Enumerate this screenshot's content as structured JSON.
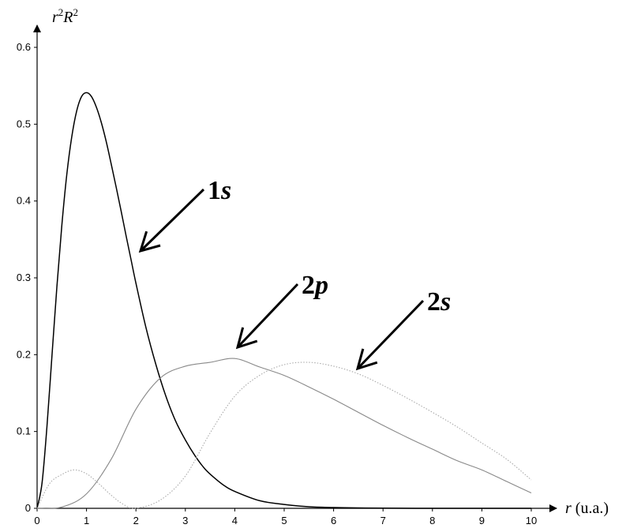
{
  "chart_data": {
    "type": "line",
    "xlabel": "r (u.a.)",
    "ylabel": "r2R2",
    "xlim": [
      0,
      10
    ],
    "ylim": [
      0,
      0.6
    ],
    "x_ticks": [
      "0",
      "1",
      "2",
      "3",
      "4",
      "5",
      "6",
      "7",
      "8",
      "9",
      "10"
    ],
    "y_ticks": [
      "0",
      "0.1",
      "0.2",
      "0.3",
      "0.4",
      "0.5",
      "0.6"
    ],
    "grid": false,
    "series": [
      {
        "name": "1s",
        "color": "#000000",
        "style": "solid",
        "x": [
          0,
          0.1,
          0.2,
          0.3,
          0.4,
          0.5,
          0.6,
          0.7,
          0.8,
          0.9,
          1.0,
          1.1,
          1.2,
          1.3,
          1.4,
          1.5,
          1.6,
          1.7,
          1.8,
          1.9,
          2.0,
          2.2,
          2.4,
          2.6,
          2.8,
          3.0,
          3.2,
          3.4,
          3.6,
          3.8,
          4.0,
          4.5,
          5.0,
          5.5,
          6.0,
          6.5,
          7.0,
          8.0,
          9.0,
          10.0
        ],
        "y": [
          0,
          0.033,
          0.107,
          0.198,
          0.288,
          0.368,
          0.434,
          0.483,
          0.517,
          0.536,
          0.541,
          0.536,
          0.522,
          0.502,
          0.477,
          0.448,
          0.418,
          0.387,
          0.355,
          0.324,
          0.293,
          0.236,
          0.188,
          0.147,
          0.114,
          0.089,
          0.068,
          0.051,
          0.039,
          0.029,
          0.022,
          0.01,
          0.005,
          0.002,
          0.001,
          0.0005,
          0.0002,
          0.0,
          0.0,
          0.0
        ]
      },
      {
        "name": "2p",
        "color": "#888888",
        "style": "solid",
        "x": [
          0,
          0.5,
          1.0,
          1.5,
          2.0,
          2.5,
          3.0,
          3.5,
          4.0,
          4.5,
          5.0,
          5.5,
          6.0,
          6.5,
          7.0,
          7.5,
          8.0,
          8.5,
          9.0,
          9.5,
          10.0
        ],
        "y": [
          0,
          0.0016,
          0.0189,
          0.064,
          0.129,
          0.17,
          0.185,
          0.19,
          0.195,
          0.184,
          0.173,
          0.158,
          0.142,
          0.125,
          0.108,
          0.092,
          0.077,
          0.062,
          0.05,
          0.035,
          0.02
        ]
      },
      {
        "name": "2s",
        "color": "#aaaaaa",
        "style": "dotted",
        "x": [
          0,
          0.25,
          0.5,
          0.75,
          1.0,
          1.25,
          1.5,
          1.75,
          2.0,
          2.5,
          3.0,
          3.5,
          4.0,
          4.5,
          5.0,
          5.5,
          6.0,
          6.5,
          7.0,
          7.5,
          8.0,
          8.5,
          9.0,
          9.5,
          10.0
        ],
        "y": [
          0,
          0.032,
          0.044,
          0.05,
          0.045,
          0.032,
          0.017,
          0.005,
          0.0,
          0.011,
          0.042,
          0.098,
          0.146,
          0.173,
          0.187,
          0.19,
          0.185,
          0.175,
          0.16,
          0.143,
          0.125,
          0.106,
          0.085,
          0.064,
          0.037
        ]
      }
    ],
    "annotations": [
      {
        "label": "1",
        "italic": "s",
        "x": 1.95,
        "y": 0.33
      },
      {
        "label": "2",
        "italic": "p",
        "x": 3.9,
        "y": 0.2
      },
      {
        "label": "2",
        "italic": "s",
        "x": 6.3,
        "y": 0.175
      }
    ]
  }
}
